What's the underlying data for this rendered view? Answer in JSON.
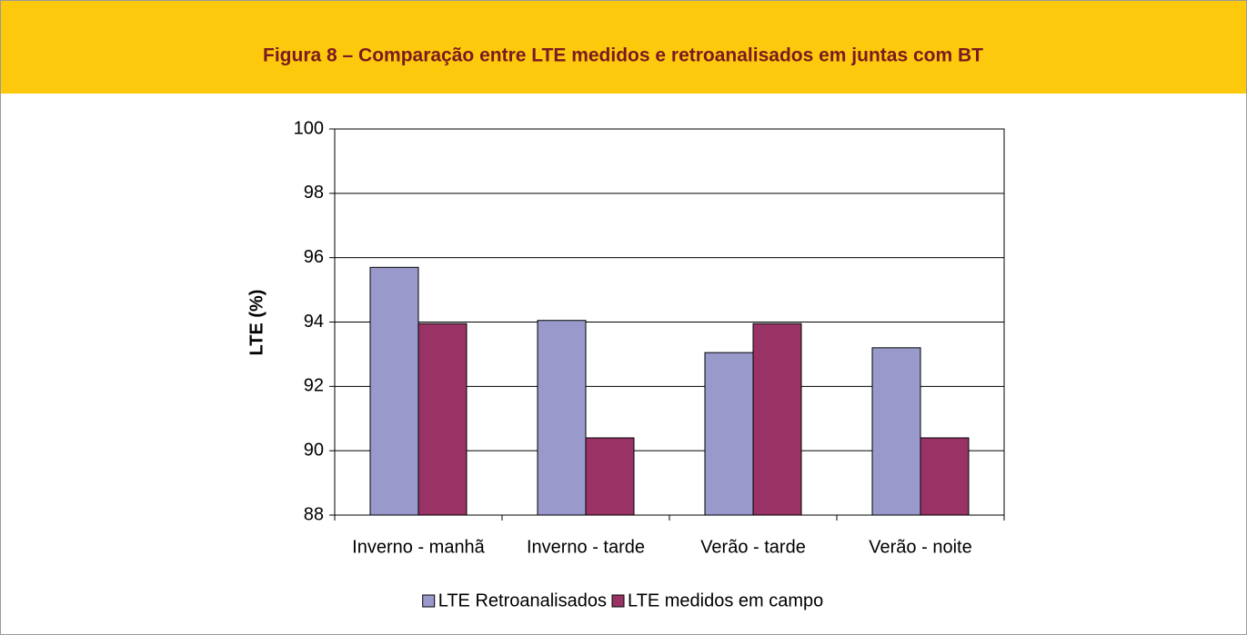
{
  "chart_data": {
    "type": "bar",
    "title": "Figura 8 – Comparação entre LTE medidos e retroanalisados em juntas com BT",
    "ylabel": "LTE (%)",
    "categories": [
      "Inverno - manhã",
      "Inverno - tarde",
      "Verão - tarde",
      "Verão - noite"
    ],
    "series": [
      {
        "name": "LTE Retroanalisados",
        "color": "#9999cc",
        "values": [
          95.7,
          94.05,
          93.05,
          93.2
        ]
      },
      {
        "name": "LTE medidos em campo",
        "color": "#993366",
        "values": [
          93.95,
          90.4,
          93.95,
          90.4
        ]
      }
    ],
    "ylim": [
      88,
      100
    ],
    "yticks": [
      88,
      90,
      92,
      94,
      96,
      98,
      100
    ],
    "grid": true,
    "legend": "bottom"
  }
}
